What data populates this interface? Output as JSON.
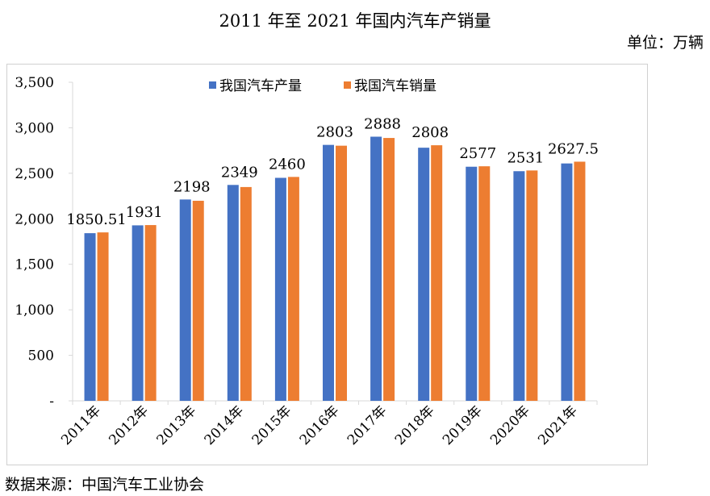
{
  "header": {
    "title": "2011 年至 2021 年国内汽车产销量",
    "unit": "单位：万辆"
  },
  "footer": {
    "source": "数据来源：中国汽车工业协会"
  },
  "colors": {
    "production": "#4472C4",
    "sales": "#ED7D31",
    "axis": "#d9d9d9"
  },
  "chart_data": {
    "type": "bar",
    "title": "2011 年至 2021 年国内汽车产销量",
    "ylabel": "单位：万辆",
    "xlabel": "",
    "ylim": [
      0,
      3500
    ],
    "yticks": [
      0,
      500,
      1000,
      1500,
      2000,
      2500,
      3000,
      3500
    ],
    "ytick_labels": [
      "-",
      "500",
      "1,000",
      "1,500",
      "2,000",
      "2,500",
      "3,000",
      "3,500"
    ],
    "grid": false,
    "legend_position": "top",
    "categories": [
      "2011年",
      "2012年",
      "2013年",
      "2014年",
      "2015年",
      "2016年",
      "2017年",
      "2018年",
      "2019年",
      "2020年",
      "2021年"
    ],
    "series": [
      {
        "name": "我国汽车产量",
        "values": [
          1842,
          1928,
          2212,
          2372,
          2450,
          2812,
          2902,
          2781,
          2572,
          2523,
          2608
        ]
      },
      {
        "name": "我国汽车销量",
        "values": [
          1850.51,
          1931,
          2198,
          2349,
          2460,
          2803,
          2888,
          2808,
          2577,
          2531,
          2627.5
        ]
      }
    ],
    "data_labels": [
      "1850.51",
      "1931",
      "2198",
      "2349",
      "2460",
      "2803",
      "2888",
      "2808",
      "2577",
      "2531",
      "2627.5"
    ]
  }
}
